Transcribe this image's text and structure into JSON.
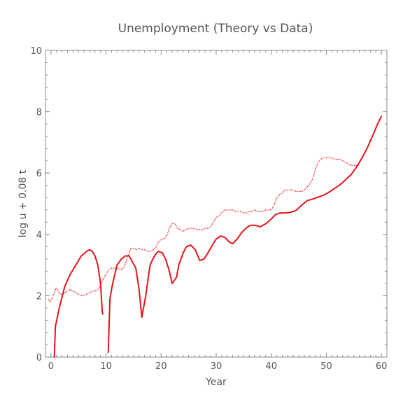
{
  "chart_data": {
    "type": "line",
    "title": "Unemployment (Theory vs Data)",
    "xlabel": "Year",
    "ylabel": "log u + 0.08 t",
    "xlim": [
      -1,
      61
    ],
    "ylim": [
      0,
      10
    ],
    "xticks": [
      0,
      10,
      20,
      30,
      40,
      50,
      60
    ],
    "yticks": [
      0,
      2,
      4,
      6,
      8,
      10
    ],
    "grid": false,
    "legend": "none",
    "color": "#e8141c",
    "series": [
      {
        "style": "solid",
        "segments": [
          [
            [
              0.6,
              0
            ],
            [
              0.8,
              1.0
            ],
            [
              1.5,
              1.6
            ],
            [
              2.5,
              2.3
            ],
            [
              3.5,
              2.7
            ],
            [
              4.5,
              3.0
            ],
            [
              5.5,
              3.3
            ],
            [
              6.5,
              3.45
            ],
            [
              7,
              3.5
            ],
            [
              7.5,
              3.45
            ],
            [
              8,
              3.3
            ],
            [
              8.5,
              3.0
            ],
            [
              9,
              2.4
            ],
            [
              9.3,
              1.5
            ],
            [
              9.4,
              1.4
            ]
          ],
          [
            [
              10.4,
              0.15
            ],
            [
              10.7,
              1.9
            ],
            [
              11.2,
              2.4
            ],
            [
              12,
              3.0
            ],
            [
              12.8,
              3.2
            ],
            [
              13.5,
              3.3
            ],
            [
              14.2,
              3.3
            ],
            [
              14.8,
              3.1
            ],
            [
              15.4,
              2.9
            ],
            [
              16,
              2.2
            ],
            [
              16.5,
              1.3
            ],
            [
              17.2,
              2.0
            ],
            [
              18,
              3.0
            ],
            [
              18.5,
              3.2
            ],
            [
              19,
              3.35
            ],
            [
              19.5,
              3.45
            ],
            [
              20.2,
              3.4
            ],
            [
              20.8,
              3.2
            ],
            [
              21.5,
              2.8
            ],
            [
              22,
              2.4
            ],
            [
              22.8,
              2.6
            ],
            [
              23.2,
              3.0
            ],
            [
              24,
              3.4
            ],
            [
              24.6,
              3.6
            ],
            [
              25.4,
              3.65
            ],
            [
              26.2,
              3.5
            ],
            [
              27,
              3.15
            ],
            [
              27.8,
              3.2
            ],
            [
              28.5,
              3.4
            ],
            [
              29.3,
              3.65
            ],
            [
              30,
              3.85
            ],
            [
              30.8,
              3.95
            ],
            [
              31.6,
              3.9
            ],
            [
              32.4,
              3.75
            ],
            [
              33,
              3.7
            ],
            [
              33.8,
              3.85
            ],
            [
              34.6,
              4.05
            ],
            [
              35.4,
              4.2
            ],
            [
              36.2,
              4.3
            ],
            [
              37,
              4.3
            ],
            [
              38,
              4.25
            ],
            [
              39,
              4.35
            ],
            [
              40,
              4.5
            ],
            [
              40.8,
              4.65
            ],
            [
              41.6,
              4.7
            ],
            [
              42.5,
              4.7
            ],
            [
              43.5,
              4.72
            ],
            [
              44.5,
              4.78
            ],
            [
              45.5,
              4.95
            ],
            [
              46.5,
              5.1
            ],
            [
              47.5,
              5.15
            ],
            [
              48.5,
              5.22
            ],
            [
              49.5,
              5.28
            ],
            [
              50.5,
              5.38
            ],
            [
              51.5,
              5.5
            ],
            [
              52.5,
              5.62
            ],
            [
              53.5,
              5.78
            ],
            [
              54.5,
              5.95
            ],
            [
              55.5,
              6.2
            ],
            [
              56.5,
              6.5
            ],
            [
              57.5,
              6.85
            ],
            [
              58.5,
              7.25
            ],
            [
              59.3,
              7.6
            ],
            [
              60,
              7.85
            ]
          ]
        ]
      },
      {
        "style": "dotted",
        "segments": [
          [
            [
              -0.5,
              1.9
            ],
            [
              -0.2,
              1.8
            ],
            [
              0,
              1.85
            ],
            [
              0.3,
              1.95
            ],
            [
              0.6,
              2.1
            ],
            [
              0.9,
              2.25
            ],
            [
              1.2,
              2.2
            ],
            [
              1.6,
              2.05
            ],
            [
              2,
              2.05
            ],
            [
              2.5,
              2.1
            ],
            [
              3,
              2.15
            ],
            [
              3.5,
              2.2
            ],
            [
              4,
              2.15
            ],
            [
              4.5,
              2.1
            ],
            [
              5,
              2.05
            ],
            [
              5.5,
              2.0
            ],
            [
              6,
              2.0
            ],
            [
              6.5,
              2.05
            ],
            [
              7,
              2.1
            ],
            [
              7.5,
              2.15
            ],
            [
              8,
              2.15
            ],
            [
              8.5,
              2.2
            ],
            [
              9,
              2.35
            ],
            [
              9.5,
              2.55
            ],
            [
              10,
              2.7
            ],
            [
              10.5,
              2.85
            ],
            [
              11,
              2.9
            ],
            [
              12,
              2.9
            ],
            [
              12.7,
              2.85
            ],
            [
              13.2,
              2.9
            ],
            [
              13.6,
              3.1
            ],
            [
              14,
              3.3
            ],
            [
              14.5,
              3.55
            ],
            [
              15,
              3.55
            ],
            [
              15.5,
              3.5
            ],
            [
              16,
              3.55
            ],
            [
              16.5,
              3.5
            ],
            [
              17,
              3.5
            ],
            [
              17.5,
              3.45
            ],
            [
              18,
              3.45
            ],
            [
              18.5,
              3.5
            ],
            [
              19,
              3.55
            ],
            [
              19.5,
              3.75
            ],
            [
              20,
              3.85
            ],
            [
              20.5,
              3.85
            ],
            [
              21,
              3.95
            ],
            [
              21.5,
              4.2
            ],
            [
              22,
              4.35
            ],
            [
              22.5,
              4.35
            ],
            [
              23,
              4.2
            ],
            [
              23.5,
              4.15
            ],
            [
              24,
              4.1
            ],
            [
              24.5,
              4.15
            ],
            [
              25,
              4.2
            ],
            [
              25.5,
              4.2
            ],
            [
              26,
              4.2
            ],
            [
              26.5,
              4.15
            ],
            [
              27,
              4.15
            ],
            [
              27.5,
              4.15
            ],
            [
              28,
              4.2
            ],
            [
              28.5,
              4.2
            ],
            [
              29,
              4.25
            ],
            [
              29.5,
              4.4
            ],
            [
              30,
              4.55
            ],
            [
              30.5,
              4.6
            ],
            [
              31,
              4.7
            ],
            [
              31.5,
              4.8
            ],
            [
              32,
              4.8
            ],
            [
              32.5,
              4.8
            ],
            [
              33,
              4.8
            ],
            [
              33.5,
              4.75
            ],
            [
              34,
              4.75
            ],
            [
              34.5,
              4.75
            ],
            [
              35,
              4.7
            ],
            [
              35.5,
              4.7
            ],
            [
              36,
              4.75
            ],
            [
              36.5,
              4.75
            ],
            [
              37,
              4.8
            ],
            [
              37.5,
              4.75
            ],
            [
              38,
              4.75
            ],
            [
              38.5,
              4.75
            ],
            [
              39,
              4.8
            ],
            [
              39.5,
              4.8
            ],
            [
              40,
              4.8
            ],
            [
              40.5,
              4.95
            ],
            [
              41,
              5.2
            ],
            [
              41.5,
              5.3
            ],
            [
              42,
              5.35
            ],
            [
              42.5,
              5.45
            ],
            [
              43,
              5.45
            ],
            [
              43.5,
              5.45
            ],
            [
              44,
              5.45
            ],
            [
              44.5,
              5.4
            ],
            [
              45,
              5.4
            ],
            [
              45.5,
              5.4
            ],
            [
              46,
              5.45
            ],
            [
              46.5,
              5.55
            ],
            [
              47,
              5.65
            ],
            [
              47.5,
              5.8
            ],
            [
              48,
              6.1
            ],
            [
              48.5,
              6.35
            ],
            [
              49,
              6.45
            ],
            [
              49.5,
              6.5
            ],
            [
              50,
              6.5
            ],
            [
              50.5,
              6.5
            ],
            [
              51,
              6.5
            ],
            [
              51.5,
              6.45
            ],
            [
              52,
              6.45
            ],
            [
              52.5,
              6.45
            ],
            [
              53,
              6.4
            ],
            [
              53.5,
              6.35
            ],
            [
              54,
              6.3
            ],
            [
              54.5,
              6.25
            ],
            [
              55,
              6.25
            ],
            [
              55.5,
              6.25
            ],
            [
              56,
              6.25
            ]
          ]
        ]
      }
    ]
  }
}
